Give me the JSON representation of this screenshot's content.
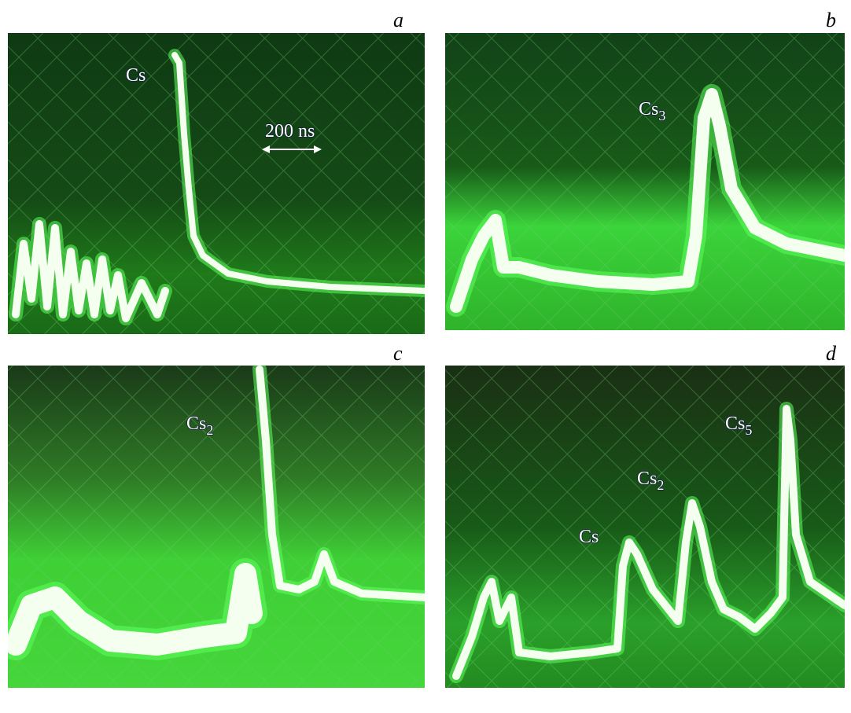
{
  "panels": [
    {
      "letter": "a",
      "labels": [
        {
          "base": "Cs"
        },
        {
          "base": "200 ns"
        }
      ]
    },
    {
      "letter": "b",
      "labels": [
        {
          "base": "Cs",
          "sub": "3"
        }
      ]
    },
    {
      "letter": "c",
      "labels": [
        {
          "base": "Cs",
          "sub": "2"
        }
      ]
    },
    {
      "letter": "d",
      "labels": [
        {
          "base": "Cs",
          "sub": "5"
        },
        {
          "base": "Cs",
          "sub": "2"
        },
        {
          "base": "Cs"
        }
      ]
    }
  ]
}
